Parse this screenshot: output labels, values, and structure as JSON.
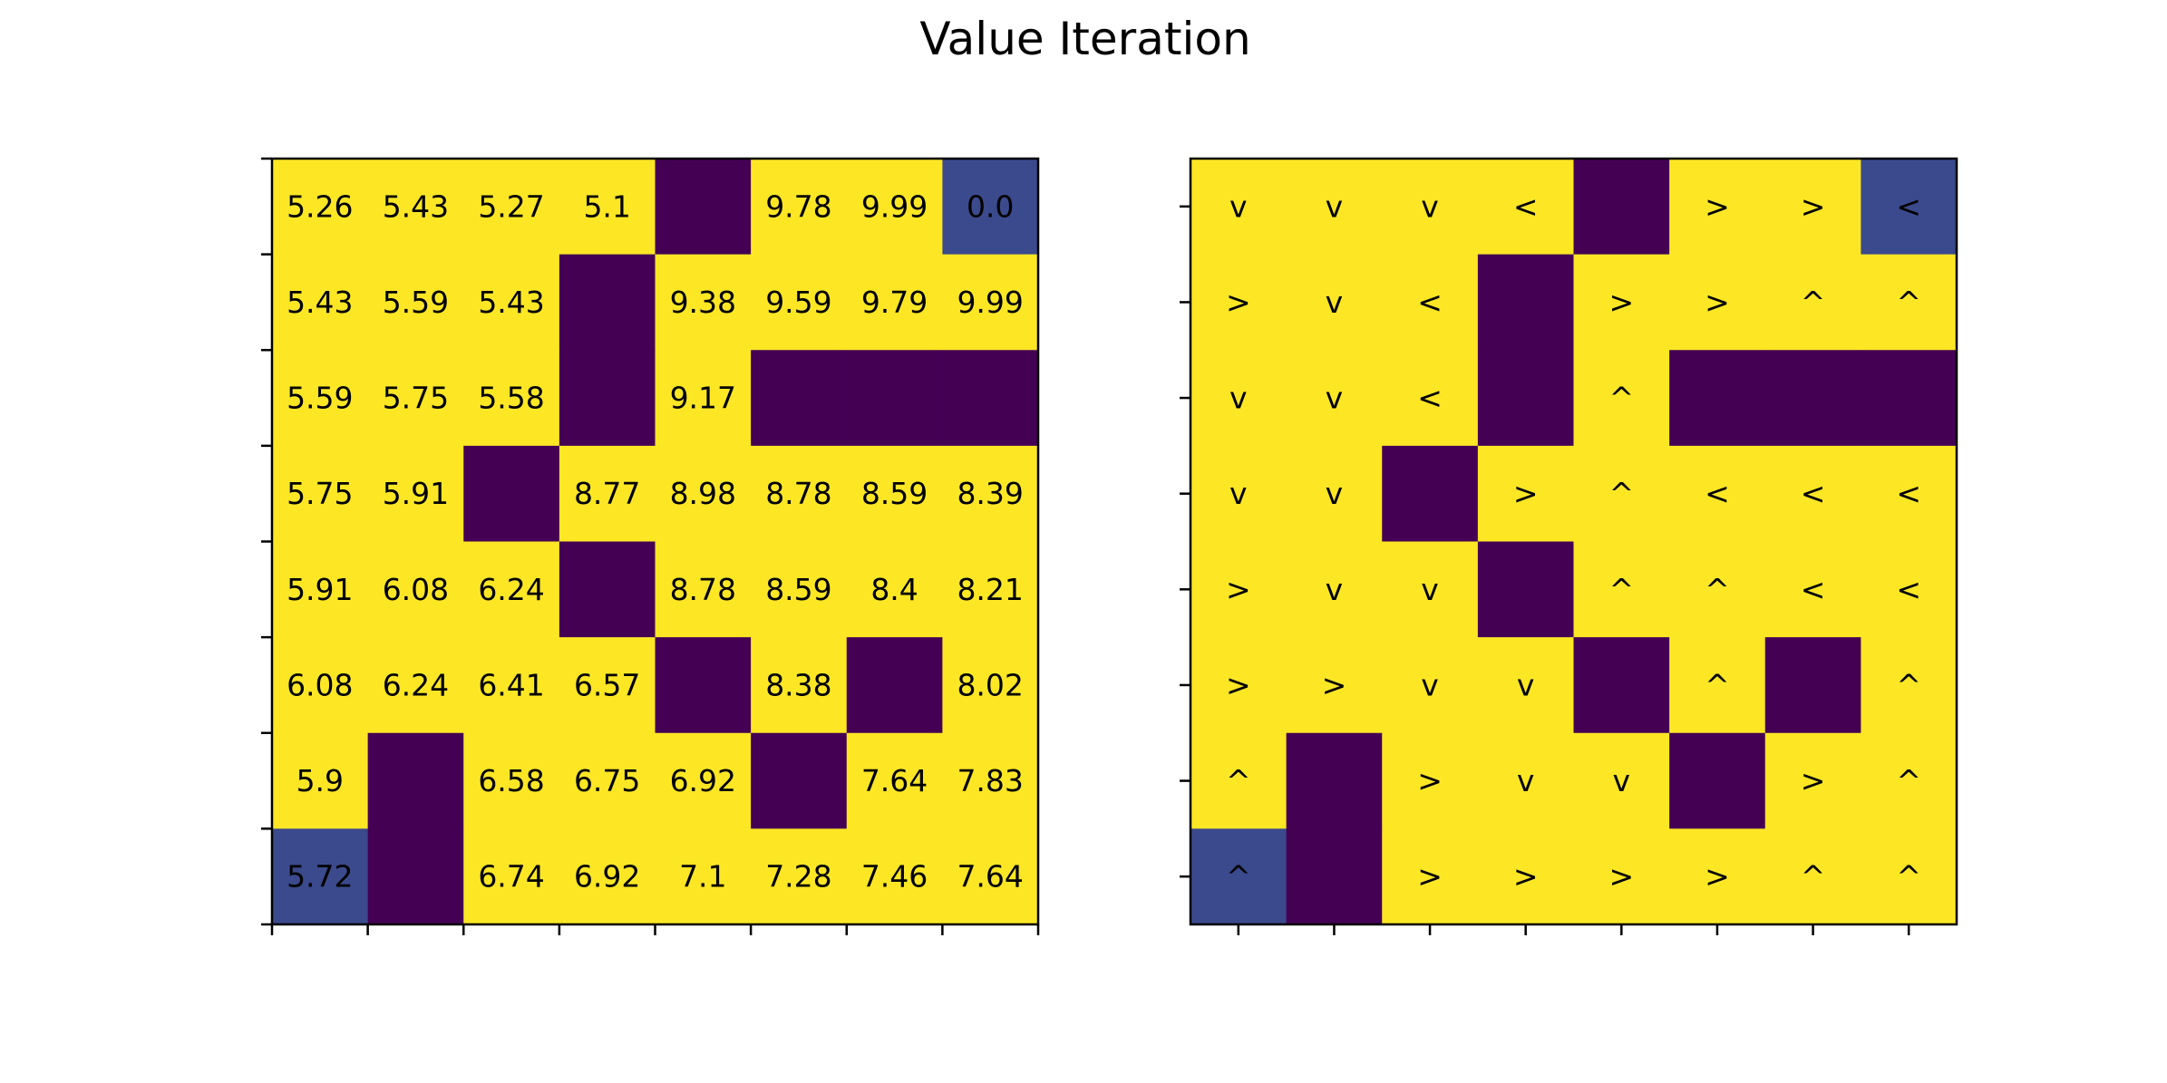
{
  "title": "Value Iteration",
  "colors": {
    "open": "#fde725",
    "wall": "#440154",
    "special": "#3b4a8c",
    "frame": "#000000",
    "text": "#000000"
  },
  "chart_data": [
    {
      "type": "heatmap",
      "cell_kinds": [
        [
          "open",
          "open",
          "open",
          "open",
          "wall",
          "open",
          "open",
          "special"
        ],
        [
          "open",
          "open",
          "open",
          "wall",
          "open",
          "open",
          "open",
          "open"
        ],
        [
          "open",
          "open",
          "open",
          "wall",
          "open",
          "wall",
          "wall",
          "wall"
        ],
        [
          "open",
          "open",
          "wall",
          "open",
          "open",
          "open",
          "open",
          "open"
        ],
        [
          "open",
          "open",
          "open",
          "wall",
          "open",
          "open",
          "open",
          "open"
        ],
        [
          "open",
          "open",
          "open",
          "open",
          "wall",
          "open",
          "wall",
          "open"
        ],
        [
          "open",
          "wall",
          "open",
          "open",
          "open",
          "wall",
          "open",
          "open"
        ],
        [
          "special",
          "wall",
          "open",
          "open",
          "open",
          "open",
          "open",
          "open"
        ]
      ],
      "labels": [
        [
          "5.26",
          "5.43",
          "5.27",
          "5.1",
          "",
          "9.78",
          "9.99",
          "0.0"
        ],
        [
          "5.43",
          "5.59",
          "5.43",
          "",
          "9.38",
          "9.59",
          "9.79",
          "9.99"
        ],
        [
          "5.59",
          "5.75",
          "5.58",
          "",
          "9.17",
          "",
          "",
          ""
        ],
        [
          "5.75",
          "5.91",
          "",
          "8.77",
          "8.98",
          "8.78",
          "8.59",
          "8.39"
        ],
        [
          "5.91",
          "6.08",
          "6.24",
          "",
          "8.78",
          "8.59",
          "8.4",
          "8.21"
        ],
        [
          "6.08",
          "6.24",
          "6.41",
          "6.57",
          "",
          "8.38",
          "",
          "8.02"
        ],
        [
          "5.9",
          "",
          "6.58",
          "6.75",
          "6.92",
          "",
          "7.64",
          "7.83"
        ],
        [
          "5.72",
          "",
          "6.74",
          "6.92",
          "7.1",
          "7.28",
          "7.46",
          "7.64"
        ]
      ],
      "ticks": "boundaries"
    },
    {
      "type": "heatmap",
      "cell_kinds": [
        [
          "open",
          "open",
          "open",
          "open",
          "wall",
          "open",
          "open",
          "special"
        ],
        [
          "open",
          "open",
          "open",
          "wall",
          "open",
          "open",
          "open",
          "open"
        ],
        [
          "open",
          "open",
          "open",
          "wall",
          "open",
          "wall",
          "wall",
          "wall"
        ],
        [
          "open",
          "open",
          "wall",
          "open",
          "open",
          "open",
          "open",
          "open"
        ],
        [
          "open",
          "open",
          "open",
          "wall",
          "open",
          "open",
          "open",
          "open"
        ],
        [
          "open",
          "open",
          "open",
          "open",
          "wall",
          "open",
          "wall",
          "open"
        ],
        [
          "open",
          "wall",
          "open",
          "open",
          "open",
          "wall",
          "open",
          "open"
        ],
        [
          "special",
          "wall",
          "open",
          "open",
          "open",
          "open",
          "open",
          "open"
        ]
      ],
      "labels": [
        [
          "v",
          "v",
          "v",
          "<",
          "",
          ">",
          ">",
          "<"
        ],
        [
          ">",
          "v",
          "<",
          "",
          ">",
          ">",
          "^",
          "^"
        ],
        [
          "v",
          "v",
          "<",
          "",
          "^",
          "",
          "",
          ""
        ],
        [
          "v",
          "v",
          "",
          ">",
          "^",
          "<",
          "<",
          "<"
        ],
        [
          ">",
          "v",
          "v",
          "",
          "^",
          "^",
          "<",
          "<"
        ],
        [
          ">",
          ">",
          "v",
          "v",
          "",
          "^",
          "",
          "^"
        ],
        [
          "^",
          "",
          ">",
          "v",
          "v",
          "",
          ">",
          "^"
        ],
        [
          "^",
          "",
          ">",
          ">",
          ">",
          ">",
          "^",
          "^"
        ]
      ],
      "ticks": "centers"
    }
  ]
}
